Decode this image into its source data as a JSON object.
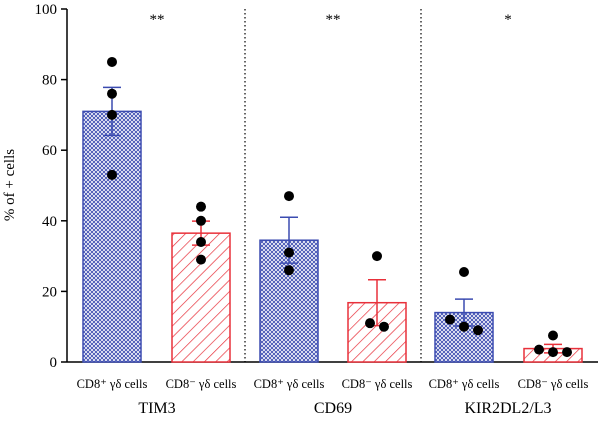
{
  "chart_data": {
    "type": "bar",
    "ylabel": "% of + cells",
    "ylim": [
      0,
      100
    ],
    "yticks": [
      0,
      20,
      40,
      60,
      80,
      100
    ],
    "grid": false,
    "legend": "none",
    "colors": {
      "cd8pos": "#3b4bb0",
      "cd8neg": "#e8303a",
      "axis": "#000000",
      "dot": "#000000"
    },
    "categories": [
      "CD8⁺ γδ cells",
      "CD8⁻ γδ cells",
      "CD8⁺ γδ cells",
      "CD8⁻ γδ cells",
      "CD8⁺ γδ cells",
      "CD8⁻ γδ cells"
    ],
    "groups": [
      {
        "name": "TIM3",
        "significance": "**",
        "bars": [
          {
            "label": "CD8⁺ γδ cells",
            "type": "cd8pos",
            "value": 71,
            "sem": 6.8,
            "points": [
              85,
              76,
              70,
              53
            ]
          },
          {
            "label": "CD8⁻ γδ cells",
            "type": "cd8neg",
            "value": 36.5,
            "sem": 3.4,
            "points": [
              44,
              40,
              34,
              29
            ]
          }
        ]
      },
      {
        "name": "CD69",
        "significance": "**",
        "bars": [
          {
            "label": "CD8⁺ γδ cells",
            "type": "cd8pos",
            "value": 34.5,
            "sem": 6.5,
            "points": [
              47,
              31,
              26
            ]
          },
          {
            "label": "CD8⁻ γδ cells",
            "type": "cd8neg",
            "value": 16.8,
            "sem": 6.5,
            "points": [
              30,
              11,
              10
            ]
          }
        ]
      },
      {
        "name": "KIR2DL2/L3",
        "significance": "*",
        "bars": [
          {
            "label": "CD8⁺ γδ cells",
            "type": "cd8pos",
            "value": 14,
            "sem": 3.8,
            "points": [
              25.5,
              12,
              10,
              9
            ]
          },
          {
            "label": "CD8⁻ γδ cells",
            "type": "cd8neg",
            "value": 3.8,
            "sem": 1.2,
            "points": [
              7.5,
              3.5,
              2.8,
              2.8
            ]
          }
        ]
      }
    ]
  }
}
